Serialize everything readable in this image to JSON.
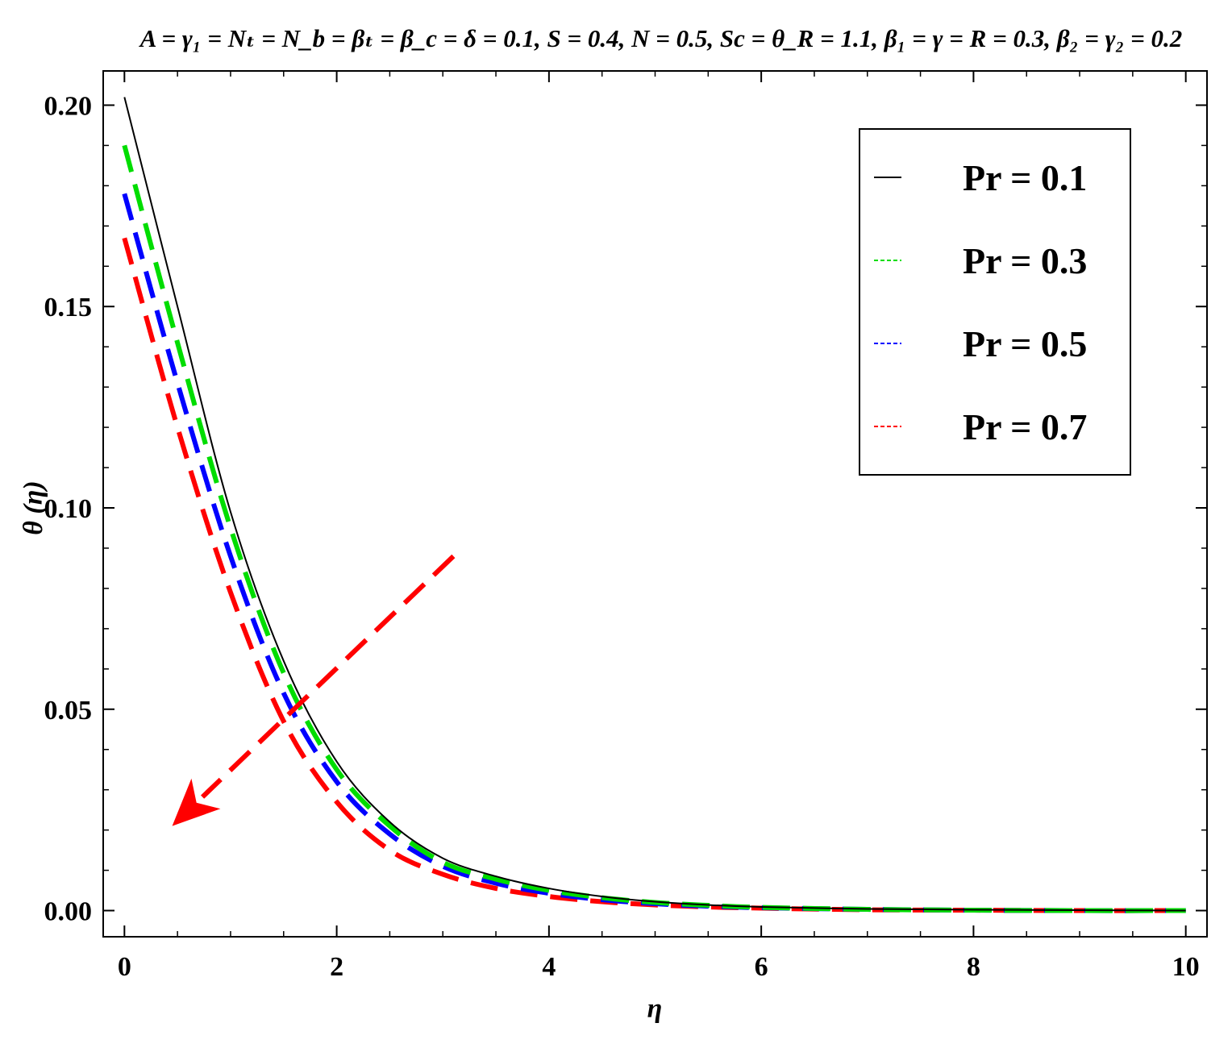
{
  "chart_data": {
    "type": "line",
    "title": "A = γ₁ = Nₜ = N_b = βₜ = β_c = δ = 0.1,  S = 0.4, N = 0.5, Sc = θ_R = 1.1, β₁ = γ = R = 0.3, β₂ = γ₂ = 0.2",
    "xlabel": "η",
    "ylabel": "θ (η)",
    "xlim": [
      -0.2,
      10.2
    ],
    "ylim": [
      -0.0065,
      0.2085
    ],
    "x_ticks": [
      "0",
      "2",
      "4",
      "6",
      "8",
      "10"
    ],
    "x_tick_values": [
      0,
      2,
      4,
      6,
      8,
      10
    ],
    "y_ticks": [
      "0.00",
      "0.05",
      "0.10",
      "0.15",
      "0.20"
    ],
    "y_tick_values": [
      0.0,
      0.05,
      0.1,
      0.15,
      0.2
    ],
    "grid": false,
    "legend_position": "top-right",
    "x": [
      0,
      0.5,
      1,
      1.5,
      2,
      2.5,
      3,
      3.5,
      4,
      4.5,
      5,
      5.5,
      6,
      7,
      8,
      9,
      10
    ],
    "series": [
      {
        "name": "Pr = 0.1",
        "color": "#000000",
        "style": "solid",
        "values": [
          0.202,
          0.15,
          0.099,
          0.062,
          0.037,
          0.022,
          0.013,
          0.0085,
          0.0055,
          0.0035,
          0.0022,
          0.0014,
          0.0009,
          0.0004,
          0.0002,
          0.0001,
          0.0
        ]
      },
      {
        "name": "Pr = 0.3",
        "color": "#00dd00",
        "style": "dashed",
        "values": [
          0.19,
          0.141,
          0.095,
          0.059,
          0.035,
          0.021,
          0.012,
          0.0078,
          0.005,
          0.0032,
          0.002,
          0.0013,
          0.0008,
          0.0003,
          0.0001,
          0.0,
          0.0
        ]
      },
      {
        "name": "Pr = 0.5",
        "color": "#0000ff",
        "style": "dashed",
        "values": [
          0.178,
          0.131,
          0.088,
          0.054,
          0.032,
          0.019,
          0.011,
          0.0068,
          0.0043,
          0.0027,
          0.0017,
          0.0011,
          0.0007,
          0.0003,
          0.0001,
          0.0,
          0.0
        ]
      },
      {
        "name": "Pr = 0.7",
        "color": "#ff0000",
        "style": "dashed",
        "values": [
          0.167,
          0.12,
          0.079,
          0.047,
          0.027,
          0.015,
          0.009,
          0.0055,
          0.0035,
          0.0022,
          0.0014,
          0.0009,
          0.0006,
          0.0002,
          0.0001,
          0.0,
          0.0
        ]
      }
    ],
    "annotation": {
      "type": "arrow",
      "color": "#ff0000",
      "style": "dashed",
      "from": [
        3.1,
        0.088
      ],
      "to": [
        0.45,
        0.021
      ]
    }
  }
}
